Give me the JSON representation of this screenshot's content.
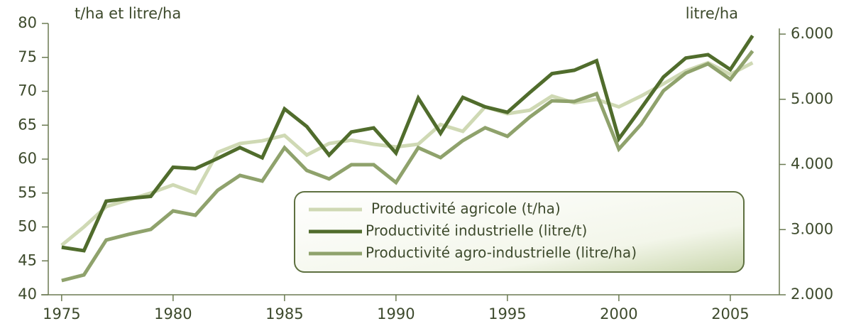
{
  "chart_data": {
    "type": "line",
    "y_label": "t/ha et litre/ha",
    "y2_label": "litre/ha",
    "x": [
      1975,
      1976,
      1977,
      1978,
      1979,
      1980,
      1981,
      1982,
      1983,
      1984,
      1985,
      1986,
      1987,
      1988,
      1989,
      1990,
      1991,
      1992,
      1993,
      1994,
      1995,
      1996,
      1997,
      1998,
      1999,
      2000,
      2001,
      2002,
      2003,
      2004,
      2005,
      2006
    ],
    "xlim": [
      1974.4,
      2007.2
    ],
    "xticks": [
      1975,
      1980,
      1985,
      1990,
      1995,
      2000,
      2005
    ],
    "ylim": [
      40,
      80
    ],
    "yticks": [
      40,
      45,
      50,
      55,
      60,
      65,
      70,
      75,
      80
    ],
    "y2lim": [
      2000,
      6000
    ],
    "y2ticks": [
      {
        "value": 2000,
        "label": "2.000"
      },
      {
        "value": 3000,
        "label": "3.000"
      },
      {
        "value": 4000,
        "label": "4.000"
      },
      {
        "value": 5000,
        "label": "5.000"
      },
      {
        "value": 6000,
        "label": "6.000"
      }
    ],
    "series": [
      {
        "name": "Productivité agricole (t/ha)",
        "color": "#cfd9b4",
        "values": [
          47.3,
          50,
          53,
          54,
          55,
          56.2,
          55,
          61,
          62.3,
          62.7,
          63.5,
          60.6,
          62.3,
          62.8,
          62.2,
          61.8,
          62.2,
          65.1,
          64.1,
          67.7,
          66.7,
          67.2,
          69.3,
          68.3,
          68.8,
          67.7,
          69.3,
          71.1,
          73,
          74.2,
          72.5,
          74.2
        ]
      },
      {
        "name": "Productivité industrielle (litre/t)",
        "color": "#506c2c",
        "values": [
          47,
          46.5,
          53.8,
          54.2,
          54.5,
          58.8,
          58.6,
          60.1,
          61.7,
          60.2,
          67.4,
          64.8,
          60.6,
          64,
          64.6,
          60.9,
          69,
          63.8,
          69.1,
          67.7,
          66.9,
          69.8,
          72.6,
          73.1,
          74.5,
          63,
          67.5,
          72.1,
          74.9,
          75.4,
          73.2,
          78.2
        ]
      },
      {
        "name": "Productivité agro-industrielle (litre/ha)",
        "color": "#8fa26c",
        "axis": "y2",
        "values": [
          2218,
          2305,
          2840,
          2927,
          3003,
          3287,
          3221,
          3603,
          3832,
          3745,
          4257,
          3908,
          3778,
          3996,
          3996,
          3723,
          4257,
          4105,
          4366,
          4563,
          4432,
          4726,
          4977,
          4966,
          5086,
          4236,
          4617,
          5130,
          5402,
          5544,
          5304,
          5740
        ]
      }
    ],
    "legend": "lower-right"
  }
}
